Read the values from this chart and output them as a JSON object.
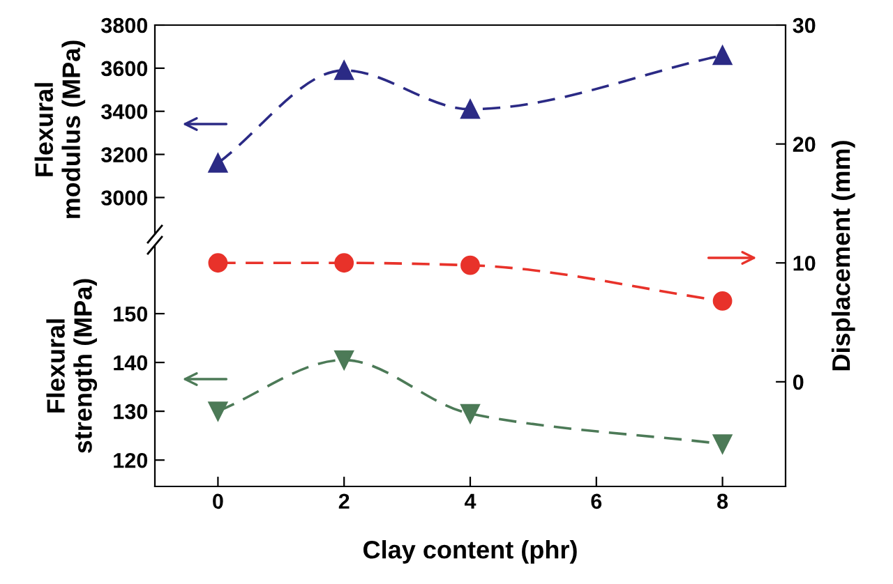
{
  "chart_data": [
    {
      "type": "line",
      "ylabel": "Flexural\nmodulus (MPa)",
      "x": [
        0,
        2,
        4,
        8
      ],
      "xlim": [
        -1,
        9
      ],
      "ylim": [
        2830,
        3800
      ],
      "yticks": [
        3000,
        3200,
        3400,
        3600,
        3800
      ],
      "tick_labels": "y",
      "grid": false,
      "legend": false,
      "line_style": "dashed",
      "series": [
        {
          "color": "#2b2a85",
          "marker": "triangle",
          "values": [
            3160,
            3590,
            3410,
            3660
          ]
        }
      ]
    },
    {
      "type": "line",
      "ylabel": "Flexural\nstrength (MPa)",
      "xlabel": "Clay content (phr)",
      "x": [
        0,
        2,
        4,
        8
      ],
      "xlim": [
        -1,
        9
      ],
      "xticks": [
        0,
        2,
        4,
        6,
        8
      ],
      "ylim": [
        114.6,
        164
      ],
      "yticks": [
        120,
        130,
        140,
        150
      ],
      "grid": false,
      "legend": false,
      "line_style": "dashed",
      "series": [
        {
          "color": "#4c7a57",
          "marker": "triangle_down",
          "values": [
            130,
            140.5,
            129.5,
            123.3
          ]
        }
      ]
    },
    {
      "type": "line",
      "y2label": "Displacement (mm)",
      "x": [
        0,
        2,
        4,
        8
      ],
      "xlim": [
        -1,
        9
      ],
      "y2lim": [
        -8.8,
        30
      ],
      "y2ticks": [
        0,
        10,
        20,
        30
      ],
      "tick_labels": "y",
      "grid": false,
      "legend": false,
      "line_style": "dashed",
      "series": [
        {
          "color": "#e8322a",
          "marker": "circle",
          "axis": "y2",
          "values": [
            10,
            10,
            9.8,
            6.8
          ]
        }
      ]
    }
  ]
}
